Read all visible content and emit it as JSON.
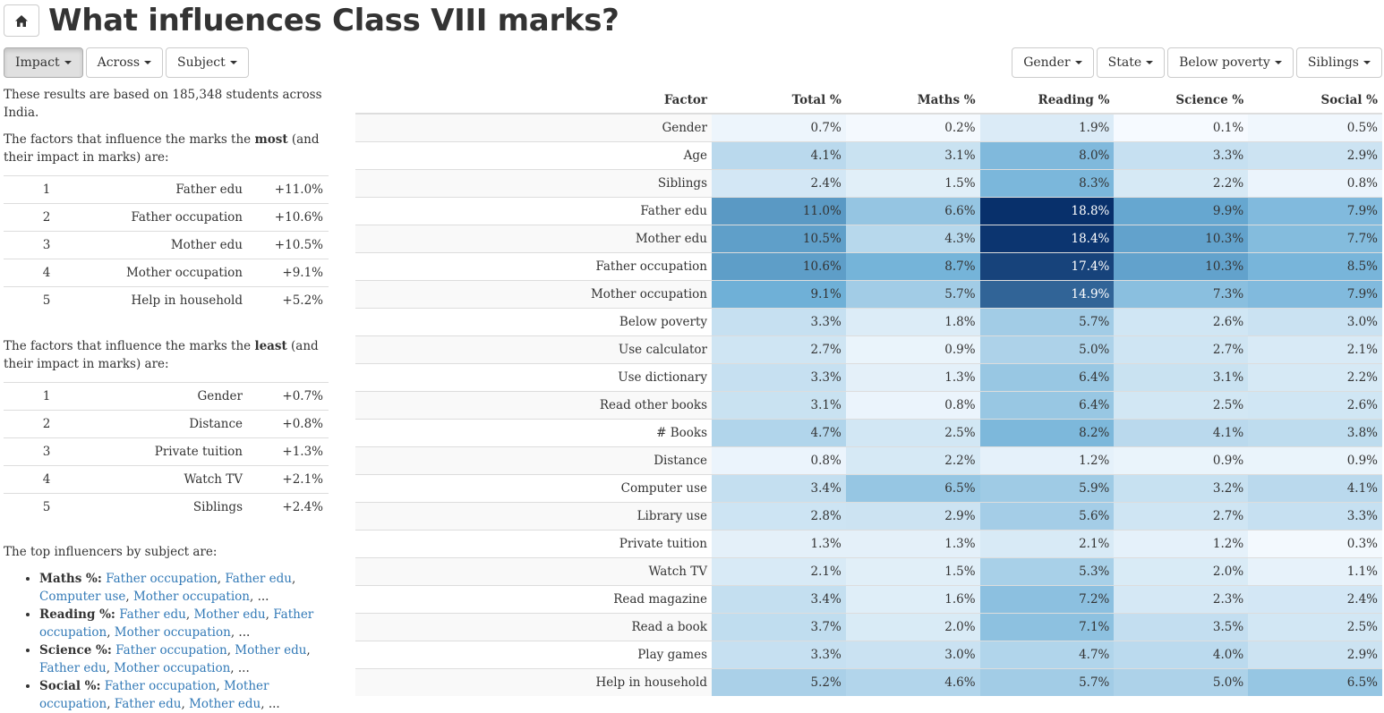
{
  "header": {
    "title": "What influences Class VIII marks?",
    "home_icon": "home-icon"
  },
  "toolbar_left": [
    {
      "label": "Impact",
      "active": true
    },
    {
      "label": "Across",
      "active": false
    },
    {
      "label": "Subject",
      "active": false
    }
  ],
  "toolbar_right": [
    {
      "label": "Gender"
    },
    {
      "label": "State"
    },
    {
      "label": "Below poverty"
    },
    {
      "label": "Siblings"
    }
  ],
  "summary": {
    "intro": "These results are based on 185,348 students across India.",
    "most_pre": "The factors that influence the marks the ",
    "most_bold": "most",
    "most_post": " (and their impact in marks) are:",
    "most": [
      {
        "rank": "1",
        "factor": "Father edu",
        "value": "+11.0%"
      },
      {
        "rank": "2",
        "factor": "Father occupation",
        "value": "+10.6%"
      },
      {
        "rank": "3",
        "factor": "Mother edu",
        "value": "+10.5%"
      },
      {
        "rank": "4",
        "factor": "Mother occupation",
        "value": "+9.1%"
      },
      {
        "rank": "5",
        "factor": "Help in household",
        "value": "+5.2%"
      }
    ],
    "least_pre": "The factors that influence the marks the ",
    "least_bold": "least",
    "least_post": " (and their impact in marks) are:",
    "least": [
      {
        "rank": "1",
        "factor": "Gender",
        "value": "+0.7%"
      },
      {
        "rank": "2",
        "factor": "Distance",
        "value": "+0.8%"
      },
      {
        "rank": "3",
        "factor": "Private tuition",
        "value": "+1.3%"
      },
      {
        "rank": "4",
        "factor": "Watch TV",
        "value": "+2.1%"
      },
      {
        "rank": "5",
        "factor": "Siblings",
        "value": "+2.4%"
      }
    ],
    "top_heading": "The top influencers by subject are:",
    "top_influencers": [
      {
        "subject": "Maths %:",
        "factors": [
          "Father occupation",
          "Father edu",
          "Computer use",
          "Mother occupation"
        ],
        "more": "..."
      },
      {
        "subject": "Reading %:",
        "factors": [
          "Father edu",
          "Mother edu",
          "Father occupation",
          "Mother occupation"
        ],
        "more": "..."
      },
      {
        "subject": "Science %:",
        "factors": [
          "Father occupation",
          "Mother edu",
          "Father edu",
          "Mother occupation"
        ],
        "more": "..."
      },
      {
        "subject": "Social %:",
        "factors": [
          "Father occupation",
          "Mother occupation",
          "Father edu",
          "Mother edu"
        ],
        "more": "..."
      }
    ]
  },
  "heatmap": {
    "columns": [
      "Factor",
      "Total %",
      "Maths %",
      "Reading %",
      "Science %",
      "Social %"
    ],
    "color_scale": {
      "low": "#f7fbff",
      "mid": "#6baed6",
      "high": "#08306b",
      "max_value": 18.8
    },
    "rows": [
      {
        "factor": "Gender",
        "values": [
          0.7,
          0.2,
          1.9,
          0.1,
          0.5
        ]
      },
      {
        "factor": "Age",
        "values": [
          4.1,
          3.1,
          8.0,
          3.3,
          2.9
        ]
      },
      {
        "factor": "Siblings",
        "values": [
          2.4,
          1.5,
          8.3,
          2.2,
          0.8
        ]
      },
      {
        "factor": "Father edu",
        "values": [
          11.0,
          6.6,
          18.8,
          9.9,
          7.9
        ]
      },
      {
        "factor": "Mother edu",
        "values": [
          10.5,
          4.3,
          18.4,
          10.3,
          7.7
        ]
      },
      {
        "factor": "Father occupation",
        "values": [
          10.6,
          8.7,
          17.4,
          10.3,
          8.5
        ]
      },
      {
        "factor": "Mother occupation",
        "values": [
          9.1,
          5.7,
          14.9,
          7.3,
          7.9
        ]
      },
      {
        "factor": "Below poverty",
        "values": [
          3.3,
          1.8,
          5.7,
          2.6,
          3.0
        ]
      },
      {
        "factor": "Use calculator",
        "values": [
          2.7,
          0.9,
          5.0,
          2.7,
          2.1
        ]
      },
      {
        "factor": "Use dictionary",
        "values": [
          3.3,
          1.3,
          6.4,
          3.1,
          2.2
        ]
      },
      {
        "factor": "Read other books",
        "values": [
          3.1,
          0.8,
          6.4,
          2.5,
          2.6
        ]
      },
      {
        "factor": "# Books",
        "values": [
          4.7,
          2.5,
          8.2,
          4.1,
          3.8
        ]
      },
      {
        "factor": "Distance",
        "values": [
          0.8,
          2.2,
          1.2,
          0.9,
          0.9
        ]
      },
      {
        "factor": "Computer use",
        "values": [
          3.4,
          6.5,
          5.9,
          3.2,
          4.1
        ]
      },
      {
        "factor": "Library use",
        "values": [
          2.8,
          2.9,
          5.6,
          2.7,
          3.3
        ]
      },
      {
        "factor": "Private tuition",
        "values": [
          1.3,
          1.3,
          2.1,
          1.2,
          0.3
        ]
      },
      {
        "factor": "Watch TV",
        "values": [
          2.1,
          1.5,
          5.3,
          2.0,
          1.1
        ]
      },
      {
        "factor": "Read magazine",
        "values": [
          3.4,
          1.6,
          7.2,
          2.3,
          2.4
        ]
      },
      {
        "factor": "Read a book",
        "values": [
          3.7,
          2.0,
          7.1,
          3.5,
          2.5
        ]
      },
      {
        "factor": "Play games",
        "values": [
          3.3,
          3.0,
          4.7,
          4.0,
          2.9
        ]
      },
      {
        "factor": "Help in household",
        "values": [
          5.2,
          4.6,
          5.7,
          5.0,
          6.5
        ]
      }
    ]
  }
}
